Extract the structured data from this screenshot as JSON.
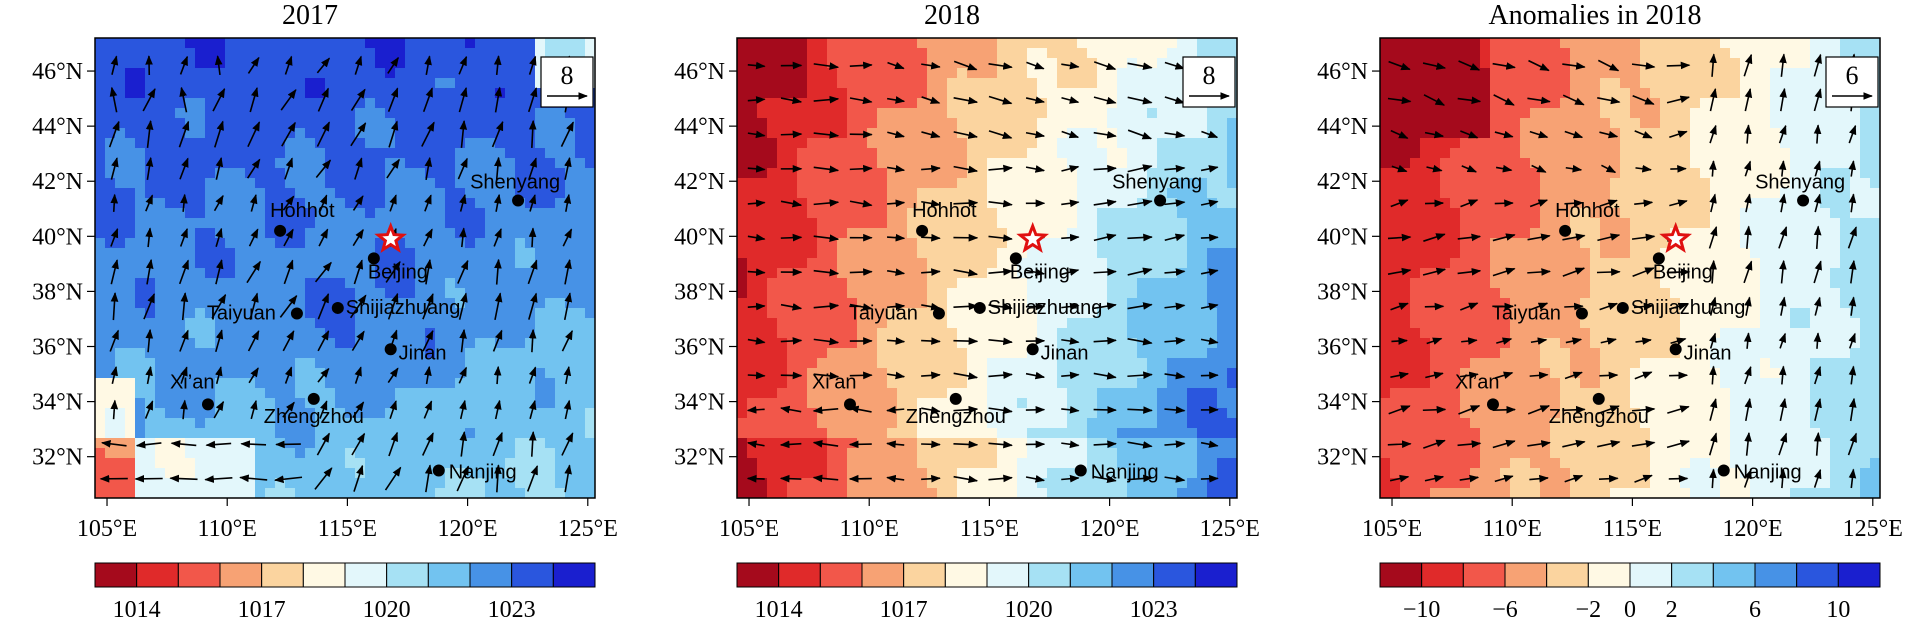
{
  "panels": [
    {
      "title": "2017",
      "ref_vector": "8",
      "colorbar": {
        "labels": [
          "1014",
          "1017",
          "1020",
          "1023"
        ],
        "label_positions": [
          1,
          4,
          7,
          10
        ]
      },
      "kind": "abs2017"
    },
    {
      "title": "2018",
      "ref_vector": "8",
      "colorbar": {
        "labels": [
          "1014",
          "1017",
          "1020",
          "1023"
        ],
        "label_positions": [
          1,
          4,
          7,
          10
        ]
      },
      "kind": "abs2018"
    },
    {
      "title": "Anomalies in 2018",
      "ref_vector": "6",
      "colorbar": {
        "labels": [
          "−10",
          "−6",
          "−2",
          "0",
          "2",
          "6",
          "10"
        ],
        "label_positions": [
          1,
          3,
          5,
          6,
          7,
          9,
          11
        ]
      },
      "kind": "anom"
    }
  ],
  "lat_labels": [
    "46°N",
    "44°N",
    "42°N",
    "40°N",
    "38°N",
    "36°N",
    "34°N",
    "32°N"
  ],
  "lon_labels": [
    "105°E",
    "110°E",
    "115°E",
    "120°E",
    "125°E"
  ],
  "cities": [
    {
      "name": "Hohhot"
    },
    {
      "name": "Beijing"
    },
    {
      "name": "Shenyang"
    },
    {
      "name": "Taiyuan"
    },
    {
      "name": "Shijiazhuang"
    },
    {
      "name": "Jinan"
    },
    {
      "name": "Xi’an"
    },
    {
      "name": "Zhengzhou"
    },
    {
      "name": "Nanjing"
    }
  ],
  "colors": {
    "abs_scale": [
      "#a50a1c",
      "#e02a2a",
      "#f2574a",
      "#f7a274",
      "#fbd49f",
      "#fff9e4",
      "#e3f7fb",
      "#a6e1f4",
      "#72c3f0",
      "#4792e6",
      "#2a56de",
      "#1a1fcf"
    ],
    "anom_scale": [
      "#a50a1c",
      "#e02a2a",
      "#f2574a",
      "#f7a274",
      "#fbd49f",
      "#fff9e4",
      "#e3f7fb",
      "#a6e1f4",
      "#72c3f0",
      "#4792e6",
      "#2a56de",
      "#1a1fcf"
    ],
    "star": "#e01010"
  }
}
